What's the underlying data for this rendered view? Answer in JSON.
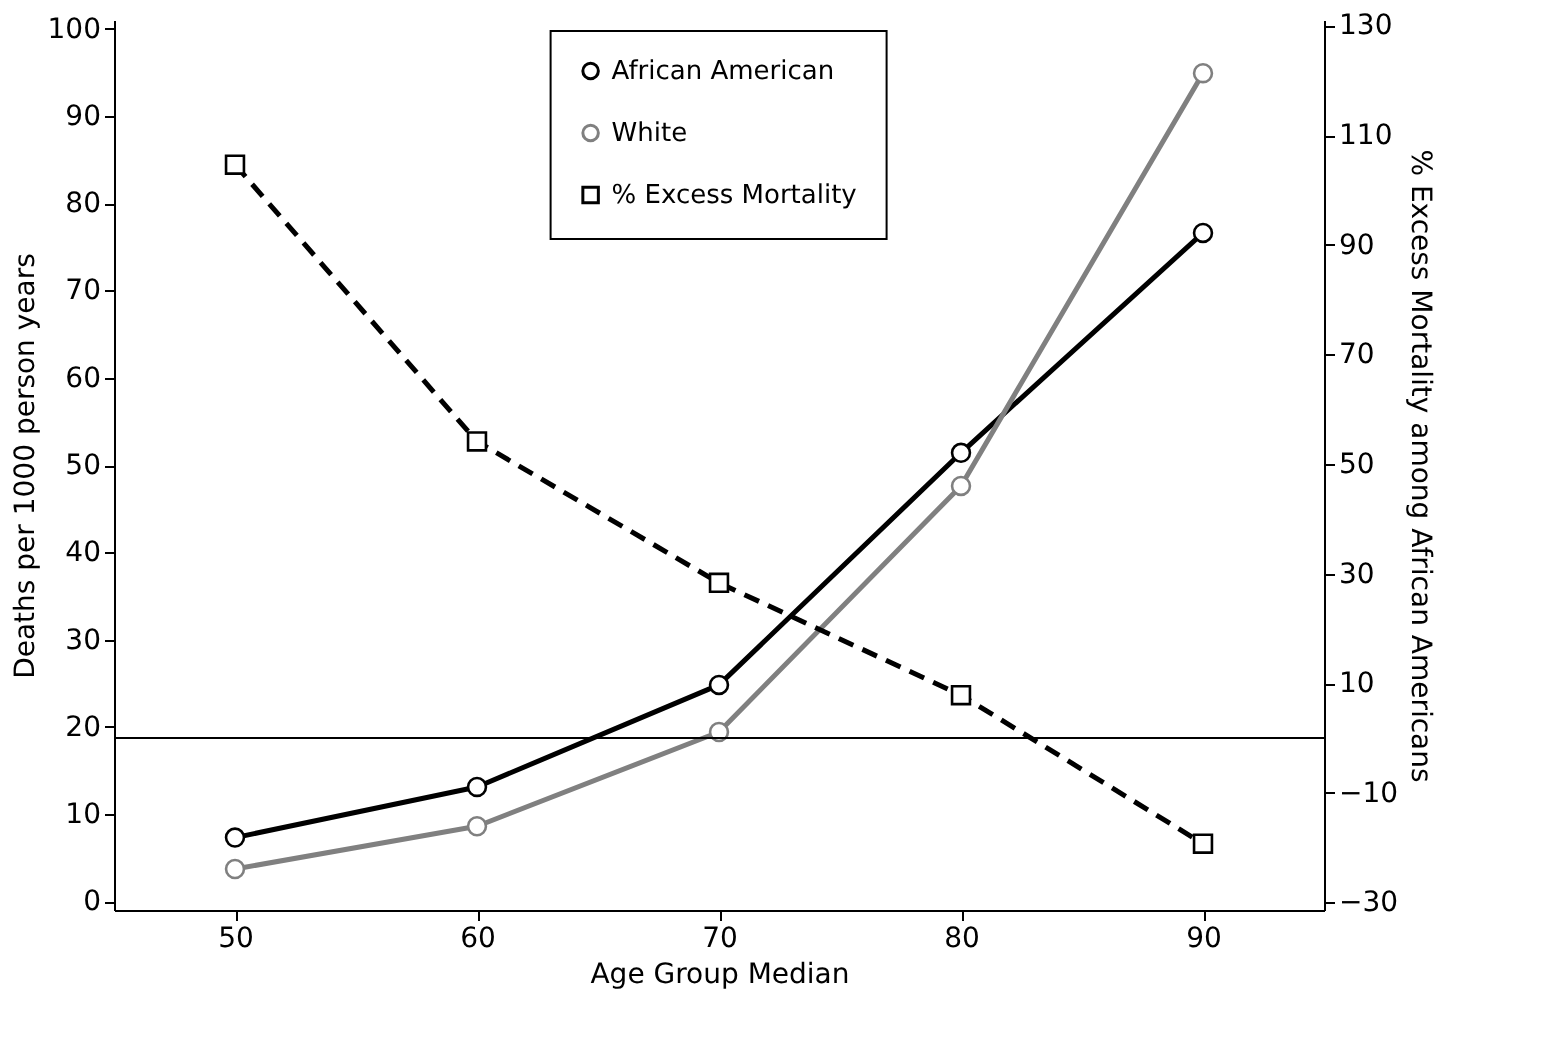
{
  "chart_data": {
    "type": "line",
    "xlabel": "Age Group Median",
    "ylabel": "Deaths per 1000 person years",
    "y2label": "% Excess Mortality among African Americans",
    "x": [
      50,
      60,
      70,
      80,
      90
    ],
    "series": [
      {
        "name": "African American",
        "color": "#000000",
        "values": [
          7.3,
          13.1,
          24.8,
          51.4,
          76.6
        ],
        "marker": "circle",
        "line_style": "solid"
      },
      {
        "name": "White",
        "color": "#808080",
        "values": [
          3.7,
          8.6,
          19.4,
          47.6,
          94.9
        ],
        "marker": "circle",
        "line_style": "solid"
      },
      {
        "name": "% Excess Mortality",
        "color": "#000000",
        "values": [
          104.6,
          54.1,
          28.3,
          7.8,
          -19.3
        ],
        "marker": "square",
        "line_style": "dashed",
        "axis": "y2"
      }
    ],
    "xlim": [
      45,
      95
    ],
    "xticks": [
      50,
      60,
      70,
      80,
      90
    ],
    "ylim": [
      -1,
      101
    ],
    "yticks": [
      0,
      10,
      20,
      30,
      40,
      50,
      60,
      70,
      80,
      90,
      100
    ],
    "y2lim": [
      -31.4,
      131
    ],
    "y2ticks": [
      -30,
      -10,
      10,
      30,
      50,
      70,
      90,
      110,
      130
    ],
    "ref_lines": [
      {
        "axis": "y2",
        "value": 0,
        "color": "#000000",
        "line_style": "solid"
      }
    ],
    "grid": false,
    "legend": "top"
  }
}
